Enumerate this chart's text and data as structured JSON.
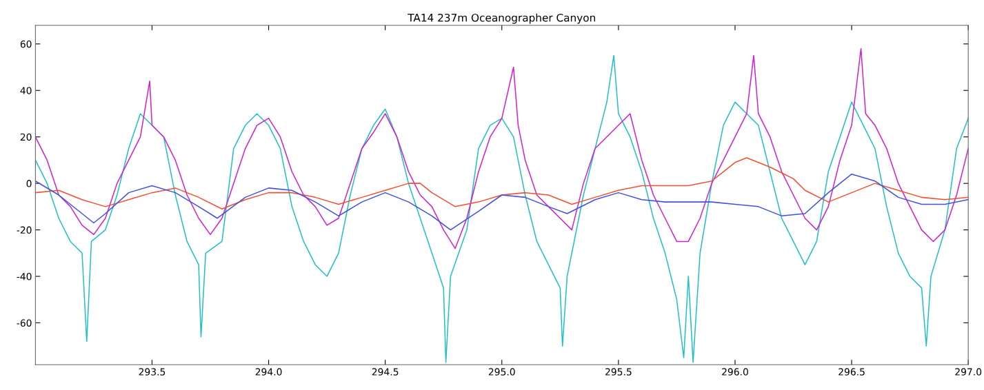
{
  "chart_data": {
    "type": "line",
    "title": "TA14 237m Oceanographer Canyon",
    "xlim": [
      293.0,
      297.0
    ],
    "xticks": [
      293.5,
      {
        "value": 294,
        "label": "294.0"
      },
      294.5,
      {
        "value": 295,
        "label": "295.0"
      },
      295.5,
      {
        "value": 296,
        "label": "296.0"
      },
      296.5,
      {
        "value": 297,
        "label": "297.0"
      }
    ],
    "ylim": [
      -78,
      68
    ],
    "yticks": [
      -60,
      -40,
      -20,
      0,
      20,
      40,
      60
    ],
    "grid": false,
    "marker": "none",
    "line_style": "solid",
    "series": [
      {
        "color": "#20c0c8",
        "x": [
          293.0,
          293.05,
          293.1,
          293.15,
          293.2,
          293.22,
          293.24,
          293.3,
          293.35,
          293.4,
          293.45,
          293.5,
          293.55,
          293.6,
          293.65,
          293.7,
          293.71,
          293.73,
          293.8,
          293.85,
          293.9,
          293.95,
          294.0,
          294.05,
          294.1,
          294.15,
          294.2,
          294.25,
          294.3,
          294.35,
          294.4,
          294.45,
          294.5,
          294.55,
          294.6,
          294.65,
          294.7,
          294.75,
          294.76,
          294.78,
          294.85,
          294.9,
          294.95,
          295.0,
          295.05,
          295.1,
          295.15,
          295.2,
          295.25,
          295.26,
          295.28,
          295.35,
          295.4,
          295.45,
          295.48,
          295.5,
          295.55,
          295.6,
          295.65,
          295.7,
          295.75,
          295.78,
          295.8,
          295.82,
          295.85,
          295.9,
          295.95,
          296.0,
          296.05,
          296.1,
          296.15,
          296.2,
          296.25,
          296.3,
          296.35,
          296.4,
          296.45,
          296.5,
          296.55,
          296.6,
          296.65,
          296.7,
          296.75,
          296.8,
          296.82,
          296.84,
          296.9,
          296.95,
          297.0
        ],
        "values": [
          10,
          0,
          -15,
          -25,
          -30,
          -68,
          -25,
          -20,
          -5,
          15,
          30,
          25,
          20,
          -5,
          -25,
          -35,
          -66,
          -30,
          -25,
          15,
          25,
          30,
          25,
          15,
          -10,
          -25,
          -35,
          -40,
          -30,
          -5,
          15,
          25,
          32,
          20,
          0,
          -15,
          -30,
          -45,
          -77,
          -40,
          -20,
          15,
          25,
          28,
          20,
          -5,
          -25,
          -35,
          -45,
          -70,
          -40,
          -5,
          15,
          35,
          55,
          30,
          20,
          5,
          -15,
          -30,
          -50,
          -75,
          -40,
          -77,
          -30,
          0,
          25,
          35,
          30,
          25,
          5,
          -15,
          -25,
          -35,
          -25,
          5,
          20,
          35,
          25,
          15,
          -10,
          -30,
          -40,
          -45,
          -70,
          -40,
          -20,
          15,
          28
        ]
      },
      {
        "color": "#d020d0",
        "x": [
          293.0,
          293.05,
          293.1,
          293.15,
          293.2,
          293.25,
          293.3,
          293.35,
          293.4,
          293.45,
          293.49,
          293.5,
          293.55,
          293.6,
          293.65,
          293.7,
          293.75,
          293.8,
          293.85,
          293.9,
          293.95,
          294.0,
          294.05,
          294.1,
          294.15,
          294.2,
          294.25,
          294.3,
          294.35,
          294.4,
          294.45,
          294.5,
          294.55,
          294.6,
          294.65,
          294.7,
          294.75,
          294.8,
          294.85,
          294.9,
          294.95,
          295.0,
          295.05,
          295.07,
          295.1,
          295.15,
          295.2,
          295.25,
          295.3,
          295.35,
          295.4,
          295.45,
          295.5,
          295.55,
          295.6,
          295.65,
          295.7,
          295.75,
          295.8,
          295.85,
          295.9,
          295.95,
          296.0,
          296.05,
          296.08,
          296.1,
          296.15,
          296.2,
          296.25,
          296.3,
          296.35,
          296.4,
          296.45,
          296.5,
          296.54,
          296.56,
          296.6,
          296.65,
          296.7,
          296.75,
          296.8,
          296.85,
          296.9,
          296.95,
          297.0
        ],
        "values": [
          20,
          10,
          -5,
          -10,
          -18,
          -22,
          -15,
          0,
          10,
          20,
          44,
          25,
          20,
          10,
          -5,
          -15,
          -22,
          -15,
          0,
          15,
          25,
          28,
          20,
          5,
          -5,
          -10,
          -18,
          -15,
          0,
          15,
          22,
          30,
          20,
          5,
          -5,
          -10,
          -20,
          -28,
          -15,
          5,
          20,
          28,
          50,
          25,
          10,
          -5,
          -10,
          -15,
          -20,
          0,
          15,
          20,
          25,
          30,
          10,
          -5,
          -15,
          -25,
          -25,
          -15,
          0,
          10,
          20,
          30,
          55,
          30,
          20,
          5,
          -5,
          -15,
          -20,
          -10,
          10,
          25,
          58,
          30,
          25,
          15,
          0,
          -10,
          -20,
          -25,
          -20,
          -5,
          15
        ]
      },
      {
        "color": "#f05030",
        "x": [
          293.0,
          293.1,
          293.2,
          293.3,
          293.4,
          293.5,
          293.6,
          293.7,
          293.8,
          293.9,
          294.0,
          294.1,
          294.2,
          294.3,
          294.4,
          294.5,
          294.6,
          294.65,
          294.7,
          294.8,
          294.9,
          295.0,
          295.1,
          295.2,
          295.3,
          295.4,
          295.5,
          295.6,
          295.7,
          295.8,
          295.9,
          296.0,
          296.05,
          296.15,
          296.25,
          296.3,
          296.4,
          296.5,
          296.6,
          296.7,
          296.8,
          296.9,
          297.0
        ],
        "values": [
          -4,
          -3,
          -7,
          -10,
          -7,
          -4,
          -2,
          -6,
          -11,
          -7,
          -4,
          -4,
          -6,
          -9,
          -6,
          -3,
          0,
          0,
          -4,
          -10,
          -8,
          -5,
          -4,
          -5,
          -9,
          -6,
          -3,
          -1,
          -1,
          -1,
          1,
          9,
          11,
          7,
          2,
          -3,
          -8,
          -4,
          0,
          -3,
          -6,
          -7,
          -6
        ]
      },
      {
        "color": "#4050e0",
        "x": [
          293.0,
          293.1,
          293.2,
          293.25,
          293.3,
          293.4,
          293.5,
          293.6,
          293.7,
          293.78,
          293.9,
          294.0,
          294.1,
          294.2,
          294.3,
          294.4,
          294.5,
          294.6,
          294.7,
          294.78,
          294.9,
          295.0,
          295.1,
          295.2,
          295.28,
          295.4,
          295.5,
          295.6,
          295.7,
          295.8,
          295.9,
          296.0,
          296.1,
          296.2,
          296.3,
          296.4,
          296.5,
          296.6,
          296.7,
          296.8,
          296.9,
          297.0
        ],
        "values": [
          1,
          -5,
          -13,
          -17,
          -13,
          -4,
          -1,
          -4,
          -10,
          -15,
          -6,
          -2,
          -3,
          -8,
          -14,
          -8,
          -4,
          -8,
          -14,
          -20,
          -12,
          -5,
          -6,
          -10,
          -13,
          -7,
          -4,
          -7,
          -8,
          -8,
          -8,
          -9,
          -10,
          -14,
          -13,
          -4,
          4,
          1,
          -6,
          -9,
          -9,
          -7
        ]
      }
    ]
  }
}
